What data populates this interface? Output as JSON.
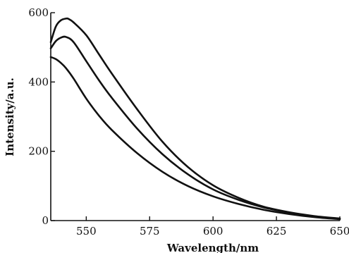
{
  "chart_data": {
    "type": "line",
    "title": "",
    "xlabel": "Wavelength/nm",
    "ylabel": "Intensity/a.u.",
    "xlim": [
      536,
      650
    ],
    "ylim": [
      0,
      600
    ],
    "xticks": [
      550,
      575,
      600,
      625,
      650
    ],
    "yticks": [
      0,
      200,
      400,
      600
    ],
    "grid": false,
    "legend": "none",
    "series": [
      {
        "x": [
          536,
          538,
          540,
          542,
          543,
          545,
          550,
          555,
          560,
          570,
          580,
          590,
          600,
          610,
          620,
          630,
          640,
          650
        ],
        "y": [
          515,
          560,
          578,
          583,
          582,
          572,
          535,
          480,
          425,
          322,
          228,
          155,
          102,
          66,
          40,
          24,
          13,
          6
        ]
      },
      {
        "x": [
          536,
          538,
          540,
          542,
          545,
          550,
          555,
          560,
          570,
          580,
          590,
          600,
          610,
          620,
          630,
          640,
          650
        ],
        "y": [
          497,
          518,
          528,
          530,
          515,
          460,
          405,
          355,
          266,
          192,
          134,
          90,
          60,
          38,
          23,
          12,
          5
        ]
      },
      {
        "x": [
          536,
          538,
          540,
          542,
          545,
          550,
          555,
          560,
          570,
          580,
          590,
          600,
          610,
          620,
          630,
          640,
          650
        ],
        "y": [
          472,
          466,
          455,
          440,
          410,
          352,
          303,
          262,
          195,
          141,
          100,
          70,
          48,
          31,
          19,
          10,
          4
        ]
      }
    ]
  }
}
